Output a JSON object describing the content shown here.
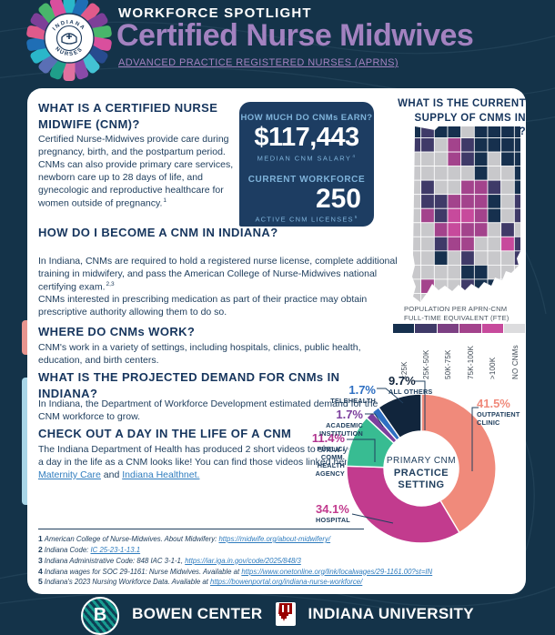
{
  "header": {
    "eyebrow": "WORKFORCE SPOTLIGHT",
    "title": "Certified Nurse Midwives",
    "subtitle": "ADVANCED PRACTICE REGISTERED NURSES (APRNS)",
    "logo": {
      "arc_top": "INDIANA",
      "arc_bottom": "NURSES",
      "palette": [
        "#2ab7c9",
        "#1f6eb5",
        "#e05a8b",
        "#7d3f98",
        "#49b66b",
        "#d94f9d",
        "#274b8f",
        "#43c3d4",
        "#8a4aa8",
        "#e0719f",
        "#1f9e8a",
        "#5a6fb5"
      ]
    }
  },
  "sections": {
    "what_is": {
      "heading": "WHAT IS A CERTIFIED NURSE MIDWIFE (CNM)?",
      "body": "Certified Nurse-Midwives provide care during pregnancy, birth, and the postpartum period. CNMs can also provide primary care services, newborn care up to 28 days of life, and gynecologic and reproductive healthcare for women outside of pregnancy.",
      "footnote": "1"
    },
    "become": {
      "heading": "HOW DO I BECOME A CNM IN INDIANA?",
      "p1": "In Indiana, CNMs are required to hold a registered nurse license, complete additional training in midwifery, and pass the American College of Nurse-Midwives national certifying exam.",
      "p1_footnote": "2,3",
      "p2": "CNMs interested in prescribing medication as part of their practice may obtain prescriptive authority allowing them to do so."
    },
    "work": {
      "heading": "WHERE DO CNMs WORK?",
      "body": "CNM's work in a variety of settings, including hospitals, clinics, public health, education, and birth centers."
    },
    "demand": {
      "heading": "WHAT IS THE PROJECTED DEMAND FOR CNMs IN INDIANA?",
      "body": "In Indiana, the Department of Workforce Development estimated demand for the CNM workforce to grow."
    },
    "day": {
      "heading": "CHECK OUT A DAY IN THE LIFE OF A CNM",
      "body": "The Indiana Department of Health has produced 2 short videos to show you what a day in the life as a CNM looks like! You can find those videos linked here: ",
      "link1": "Riley Maternity Care",
      "connector": " and ",
      "link2": "Indiana Healthnet."
    }
  },
  "stats": {
    "earn_heading": "HOW MUCH DO CNMs EARN?",
    "salary": "$117,443",
    "salary_label": "MEDIAN CNM SALARY",
    "salary_footnote": "4",
    "workforce_heading": "CURRENT WORKFORCE",
    "workforce_count": "250",
    "workforce_label": "ACTIVE CNM LICENSES",
    "workforce_footnote": "5"
  },
  "map": {
    "heading": "WHAT IS THE CURRENT SUPPLY OF CNMS IN INDIANA?",
    "caption_line1": "POPULATION PER APRN-CNM",
    "caption_line2": "FULL-TIME EQUIVALENT (FTE)",
    "legend": [
      {
        "label": "<25K",
        "color": "#16304e"
      },
      {
        "label": "25K-50K",
        "color": "#3f3a68"
      },
      {
        "label": "50K-75K",
        "color": "#7c4083"
      },
      {
        "label": "75K-100K",
        "color": "#a3438c"
      },
      {
        "label": ">100K",
        "color": "#c74a9c"
      },
      {
        "label": "NO CNMs",
        "color": "#dcdcde"
      }
    ],
    "palette": {
      "n": "#16304e",
      "d": "#3f3a68",
      "p": "#7c4083",
      "m": "#a3438c",
      "k": "#c74a9c",
      "g": "#c8c8cb"
    },
    "grid": [
      "ndnngnnnn",
      "ddgmdnnnn",
      "gggmdngnn",
      "gggggnggn",
      "gdggmmdgn",
      "gddmmmngd",
      "gmdkkmngd",
      "ggmkmmgdg",
      "ggdmmggkd",
      "ggngdgggd",
      "ggggnnggg",
      "gmggdnngg",
      "ggggggggg"
    ]
  },
  "chart_data": {
    "type": "pie",
    "donut": true,
    "title": "PRIMARY CNM PRACTICE SETTING",
    "center_line1": "PRIMARY CNM",
    "center_line2": "PRACTICE",
    "center_line3": "SETTING",
    "start_angle_deg": 0,
    "direction": "clockwise",
    "legend_position": "callout-labels",
    "series": [
      {
        "label": "OUTPATIENT CLINIC",
        "value": 41.5,
        "color": "#f08a7b"
      },
      {
        "label": "HOSPITAL",
        "value": 34.1,
        "color": "#c23b8e"
      },
      {
        "label": "PUBLIC/COMM. HEALTH AGENCY",
        "value": 11.4,
        "color": "#38bc92"
      },
      {
        "label": "ACADEMIC INSTITUTION",
        "value": 1.7,
        "color": "#7b3f9d"
      },
      {
        "label": "TELEHEALTH",
        "value": 1.7,
        "color": "#2e6fc2"
      },
      {
        "label": "ALL OTHERS",
        "value": 9.7,
        "color": "#11253c"
      }
    ],
    "labels": [
      {
        "value": "41.5%",
        "name": "OUTPATIENT\nCLINIC",
        "color": "#f08a7b"
      },
      {
        "value": "34.1%",
        "name": "HOSPITAL",
        "color": "#c23b8e"
      },
      {
        "value": "11.4%",
        "name": "PUBLIC/\nCOMM.\nHEALTH\nAGENCY",
        "color": "#b0338f"
      },
      {
        "value": "1.7%",
        "name": "ACADEMIC\nINSTITUTION",
        "color": "#7b3f9d"
      },
      {
        "value": "1.7%",
        "name": "TELEHEALTH",
        "color": "#2e6fc2"
      },
      {
        "value": "9.7%",
        "name": "ALL OTHERS",
        "color": "#12253c"
      }
    ]
  },
  "footnotes": [
    {
      "num": "1",
      "text": "American College of Nurse-Midwives. About Midwifery: ",
      "link": "https://midwife.org/about-midwifery/"
    },
    {
      "num": "2",
      "text": "Indiana Code: ",
      "link": "IC 25-23-1-13.1"
    },
    {
      "num": "3",
      "text": "Indiana Administrative Code: 848 IAC 3-1-1, ",
      "link": "https://iar.iga.in.gov/code/2025/848/3"
    },
    {
      "num": "4",
      "text": "Indiana wages for SOC 29-1161: Nurse Midwives. Available at ",
      "link": "https://www.onetonline.org/link/localwages/29-1161.00?st=IN"
    },
    {
      "num": "5",
      "text": "Indiana's 2023 Nursing Workforce Data. Available at ",
      "link": "https://bowenportal.org/indiana-nurse-workforce/"
    }
  ],
  "footer": {
    "bowen_initial": "B",
    "bowen": "BOWEN CENTER",
    "iu": "INDIANA UNIVERSITY"
  },
  "colors": {
    "background": "#143349",
    "card": "#ffffff",
    "accent_purple": "#a382c0",
    "heading_navy": "#16355d",
    "stat_box": "#1d3d62",
    "stat_light_blue": "#7fb3da",
    "link_blue": "#2f7cbe"
  }
}
